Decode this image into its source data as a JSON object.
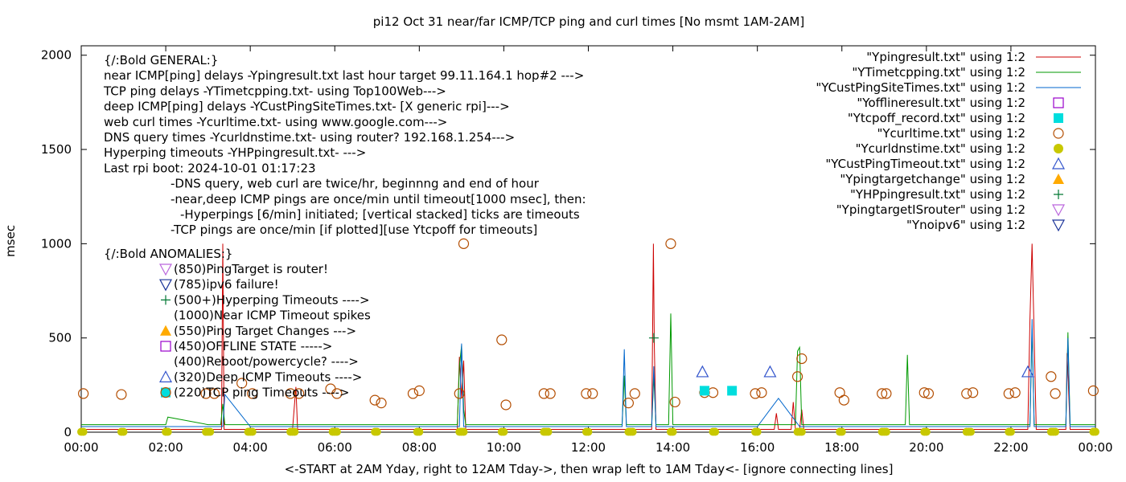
{
  "chart_data": {
    "type": "line",
    "title": "pi12 Oct 31  near/far ICMP/TCP ping and curl times [No msmt 1AM-2AM]",
    "ylabel": "msec",
    "xlabel": "<-START at 2AM Yday, right to 12AM Tday->, then wrap left to 1AM Tday<- [ignore connecting lines]",
    "xlim": [
      0,
      24
    ],
    "ylim": [
      0,
      2050
    ],
    "x_tick_labels": [
      "00:00",
      "02:00",
      "04:00",
      "06:00",
      "08:00",
      "10:00",
      "12:00",
      "14:00",
      "16:00",
      "18:00",
      "20:00",
      "22:00",
      "00:00"
    ],
    "y_ticks": [
      0,
      500,
      1000,
      1500,
      2000
    ],
    "legend_position": "top-right",
    "legend": [
      {
        "label": "\"Ypingresult.txt\" using 1:2",
        "kind": "line",
        "color": "#cc0000"
      },
      {
        "label": "\"YTimetcpping.txt\" using 1:2",
        "kind": "line",
        "color": "#009900"
      },
      {
        "label": "\"YCustPingSiteTimes.txt\" using 1:2",
        "kind": "line",
        "color": "#0066cc"
      },
      {
        "label": "\"Yofflineresult.txt\" using 1:2",
        "kind": "open-square",
        "color": "#9900cc"
      },
      {
        "label": "\"Ytcpoff_record.txt\" using 1:2",
        "kind": "filled-square",
        "color": "#00dddd"
      },
      {
        "label": "\"Ycurltime.txt\" using 1:2",
        "kind": "open-circle",
        "color": "#b34d00"
      },
      {
        "label": "\"Ycurldnstime.txt\" using 1:2",
        "kind": "filled-circle",
        "color": "#c8c800"
      },
      {
        "label": "\"YCustPingTimeout.txt\" using 1:2",
        "kind": "open-triangle",
        "color": "#3355cc"
      },
      {
        "label": "\"Ypingtargetchange\" using 1:2",
        "kind": "filled-triangle",
        "color": "#ffaa00"
      },
      {
        "label": "\"YHPpingresult.txt\" using 1:2",
        "kind": "plus",
        "color": "#007733"
      },
      {
        "label": "\"YpingtargetISrouter\" using 1:2",
        "kind": "open-down-triangle",
        "color": "#bb66dd"
      },
      {
        "label": "\"Ynoipv6\" using 1:2",
        "kind": "open-down-triangle",
        "color": "#1a3399"
      }
    ],
    "annotation_lines": [
      "{/:Bold GENERAL:}",
      "near ICMP[ping] delays -Ypingresult.txt last hour target 99.11.164.1 hop#2 --->",
      "TCP ping delays -YTimetcpping.txt- using Top100Web--->",
      "deep ICMP[ping] delays -YCustPingSiteTimes.txt- [X generic rpi]--->",
      "web curl times -Ycurltime.txt- using www.google.com--->",
      "DNS query times -Ycurldnstime.txt- using router? 192.168.1.254--->",
      "Hyperping timeouts -YHPpingresult.txt- --->",
      "Last rpi boot: 2024-10-01 01:17:23",
      "-DNS query, web curl are twice/hr, beginnng and end of hour",
      "-near,deep ICMP pings are once/min until timeout[1000 msec], then:",
      "-Hyperpings [6/min] initiated; [vertical stacked] ticks are timeouts",
      "-TCP pings are once/min [if plotted][use Ytcpoff for timeouts]",
      "{/:Bold ANOMALIES:}"
    ],
    "anomaly_labels": [
      {
        "text": "(850)PingTarget is router!",
        "kind": "open-down-triangle",
        "color": "#bb66dd"
      },
      {
        "text": "(785)ipv6 failure!",
        "kind": "open-down-triangle",
        "color": "#1a3399"
      },
      {
        "text": "(500+)Hyperping Timeouts ---->",
        "kind": "plus",
        "color": "#007733"
      },
      {
        "text": "(1000)Near ICMP Timeout spikes",
        "kind": "none",
        "color": ""
      },
      {
        "text": "(550)Ping Target Changes --->",
        "kind": "filled-triangle",
        "color": "#ffaa00"
      },
      {
        "text": "(450)OFFLINE STATE ----->",
        "kind": "open-square",
        "color": "#9900cc"
      },
      {
        "text": "(400)Reboot/powercycle? ---->",
        "kind": "none",
        "color": ""
      },
      {
        "text": "(320)Deep ICMP Timeouts ---->",
        "kind": "open-triangle",
        "color": "#3355cc"
      },
      {
        "text": "(220)TCP ping Timeouts ---->",
        "kind": "filled-square-circle",
        "color": "#00dddd"
      }
    ],
    "series": [
      {
        "name": "\"Ycurltime.txt\" using 1:2",
        "kind": "open-circle",
        "color": "#b34d00",
        "x": [
          0.05,
          0.95,
          2.95,
          3.15,
          3.8,
          4.05,
          4.95,
          5.15,
          5.9,
          6.05,
          6.95,
          7.1,
          7.85,
          8.0,
          8.95,
          9.05,
          9.95,
          10.05,
          10.95,
          11.1,
          11.95,
          12.1,
          12.95,
          13.1,
          13.95,
          14.05,
          14.75,
          14.95,
          15.95,
          16.1,
          16.95,
          17.05,
          17.95,
          18.05,
          18.95,
          19.05,
          19.95,
          20.05,
          20.95,
          21.1,
          21.95,
          22.1,
          22.95,
          23.05,
          23.95
        ],
        "y": [
          205,
          200,
          205,
          205,
          260,
          205,
          205,
          205,
          230,
          205,
          170,
          155,
          205,
          220,
          205,
          1000,
          490,
          145,
          205,
          205,
          205,
          205,
          155,
          205,
          1000,
          160,
          210,
          210,
          205,
          210,
          295,
          390,
          210,
          170,
          205,
          205,
          210,
          205,
          205,
          210,
          205,
          210,
          295,
          205,
          220
        ]
      },
      {
        "name": "\"Ycurldnstime.txt\" using 1:2",
        "kind": "filled-circle",
        "color": "#c8c800",
        "x": [
          0.0,
          0.05,
          0.95,
          1.0,
          2.0,
          2.05,
          2.95,
          3.0,
          3.05,
          3.95,
          4.0,
          4.05,
          4.95,
          5.0,
          5.05,
          5.95,
          6.0,
          6.05,
          6.95,
          7.0,
          7.95,
          8.0,
          8.95,
          9.0,
          9.05,
          9.95,
          10.0,
          10.95,
          11.0,
          11.05,
          11.95,
          12.0,
          12.95,
          13.0,
          13.05,
          13.95,
          14.0,
          14.95,
          15.0,
          15.95,
          16.0,
          16.95,
          17.0,
          17.05,
          17.95,
          18.0,
          18.95,
          19.0,
          19.05,
          19.95,
          20.0,
          20.95,
          21.0,
          21.05,
          21.95,
          22.0,
          22.95,
          23.0,
          23.05,
          23.95,
          24.0
        ],
        "y": [
          2,
          2,
          2,
          2,
          2,
          2,
          2,
          2,
          2,
          2,
          2,
          2,
          2,
          2,
          2,
          2,
          2,
          2,
          2,
          2,
          2,
          2,
          2,
          2,
          2,
          2,
          2,
          2,
          2,
          2,
          2,
          2,
          2,
          2,
          2,
          2,
          2,
          2,
          2,
          2,
          2,
          2,
          2,
          2,
          2,
          2,
          2,
          2,
          2,
          2,
          2,
          2,
          2,
          2,
          2,
          2,
          2,
          2,
          2,
          2,
          2
        ]
      },
      {
        "name": "\"YCustPingTimeout.txt\" using 1:2",
        "kind": "open-triangle",
        "color": "#3355cc",
        "x": [
          14.7,
          16.3,
          22.4
        ],
        "y": [
          320,
          320,
          320
        ]
      },
      {
        "name": "\"Ytcpoff_record.txt\" using 1:2",
        "kind": "filled-square",
        "color": "#00dddd",
        "x": [
          14.75,
          15.4
        ],
        "y": [
          220,
          220
        ]
      },
      {
        "name": "\"YHPpingresult.txt\" using 1:2",
        "kind": "plus",
        "color": "#007733",
        "x": [
          13.55
        ],
        "y": [
          500
        ]
      },
      {
        "name": "\"Ypingresult.txt\" using 1:2",
        "kind": "line",
        "color": "#cc0000",
        "x": [
          0.0,
          3.2,
          3.32,
          3.35,
          3.38,
          3.5,
          5.0,
          5.08,
          5.12,
          8.9,
          8.95,
          9.0,
          9.05,
          9.1,
          13.5,
          13.54,
          13.56,
          13.6,
          15.0,
          16.4,
          16.45,
          16.5,
          16.8,
          16.85,
          16.9,
          17.0,
          17.05,
          17.1,
          22.3,
          22.4,
          22.45,
          22.5,
          22.6,
          23.3,
          23.33,
          23.36,
          23.4,
          24.0
        ],
        "y": [
          15,
          15,
          15,
          1000,
          15,
          15,
          15,
          240,
          15,
          15,
          400,
          180,
          380,
          15,
          15,
          1000,
          470,
          15,
          15,
          15,
          100,
          15,
          15,
          160,
          15,
          15,
          120,
          15,
          15,
          15,
          600,
          1000,
          15,
          15,
          420,
          250,
          15,
          15
        ]
      },
      {
        "name": "\"YTimetcpping.txt\" using 1:2",
        "kind": "line",
        "color": "#009900",
        "x": [
          0.0,
          1.0,
          2.0,
          2.05,
          3.0,
          3.3,
          3.35,
          3.4,
          4.0,
          5.0,
          6.0,
          7.0,
          8.0,
          8.9,
          8.95,
          9.0,
          9.05,
          9.1,
          10.0,
          11.0,
          12.0,
          12.8,
          12.85,
          12.9,
          13.5,
          13.55,
          13.6,
          13.9,
          13.95,
          14.0,
          15.0,
          16.0,
          16.9,
          16.95,
          17.0,
          17.05,
          18.0,
          19.0,
          19.5,
          19.55,
          19.6,
          20.0,
          21.0,
          22.0,
          22.45,
          22.5,
          22.55,
          23.3,
          23.35,
          23.4,
          24.0
        ],
        "y": [
          40,
          40,
          40,
          80,
          40,
          40,
          150,
          40,
          40,
          40,
          40,
          40,
          40,
          40,
          350,
          460,
          120,
          40,
          40,
          40,
          40,
          40,
          300,
          40,
          40,
          300,
          40,
          40,
          630,
          40,
          40,
          40,
          40,
          430,
          450,
          40,
          40,
          40,
          40,
          410,
          40,
          40,
          40,
          40,
          40,
          550,
          40,
          40,
          530,
          40,
          40
        ]
      },
      {
        "name": "\"YCustPingSiteTimes.txt\" using 1:2",
        "kind": "line",
        "color": "#0066cc",
        "x": [
          0.0,
          2.0,
          3.0,
          3.35,
          3.4,
          4.0,
          5.0,
          6.0,
          7.0,
          8.0,
          8.95,
          9.0,
          9.05,
          10.0,
          11.0,
          12.0,
          12.8,
          12.85,
          12.9,
          13.5,
          13.55,
          13.6,
          14.0,
          15.0,
          16.0,
          16.5,
          17.0,
          18.0,
          19.0,
          20.0,
          21.0,
          22.0,
          22.45,
          22.5,
          22.55,
          23.3,
          23.35,
          23.4,
          24.0
        ],
        "y": [
          30,
          30,
          30,
          30,
          200,
          30,
          30,
          30,
          30,
          30,
          30,
          470,
          30,
          30,
          30,
          30,
          30,
          440,
          30,
          30,
          350,
          30,
          30,
          30,
          30,
          180,
          30,
          30,
          30,
          30,
          30,
          30,
          30,
          600,
          30,
          30,
          500,
          30,
          30
        ]
      }
    ]
  }
}
